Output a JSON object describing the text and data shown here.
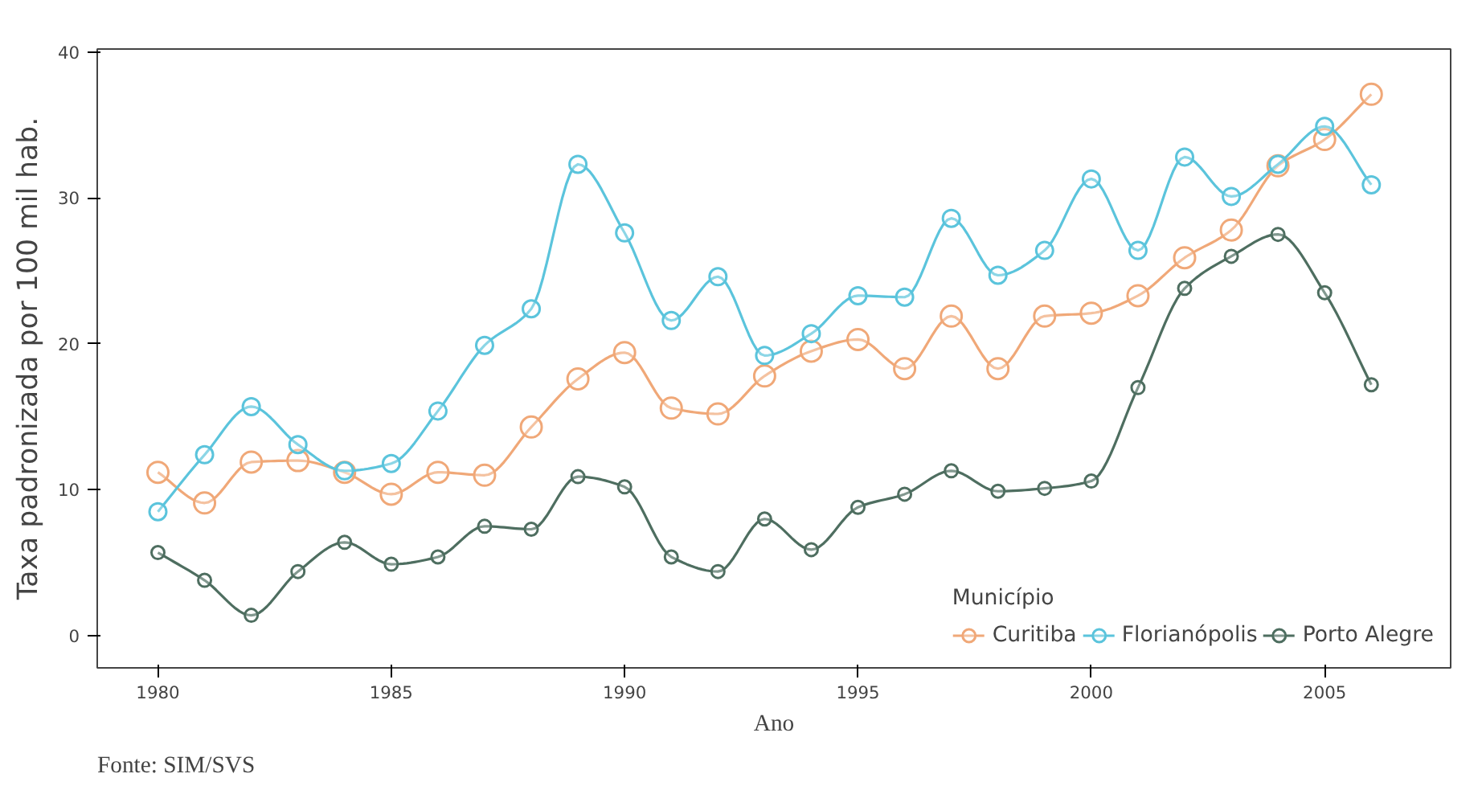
{
  "chart_data": {
    "type": "line",
    "xlabel": "Ano",
    "ylabel": "Taxa padronizada por 100 mil hab.",
    "legend_title": "Município",
    "annotations": [
      "Fonte: SIM/SVS"
    ],
    "x": [
      1980,
      1981,
      1982,
      1983,
      1984,
      1985,
      1986,
      1987,
      1988,
      1989,
      1990,
      1991,
      1992,
      1993,
      1994,
      1995,
      1996,
      1997,
      1998,
      1999,
      2000,
      2001,
      2002,
      2003,
      2004,
      2005,
      2006
    ],
    "series": [
      {
        "name": "Curitiba",
        "color": "#f0a878",
        "values": [
          11.2,
          9.1,
          11.9,
          12.0,
          11.2,
          9.7,
          11.2,
          11.0,
          14.3,
          17.6,
          19.4,
          15.6,
          15.2,
          17.8,
          19.5,
          20.3,
          18.3,
          21.9,
          18.3,
          21.9,
          22.1,
          23.3,
          25.9,
          27.8,
          32.2,
          34.0,
          37.1
        ]
      },
      {
        "name": "Florianópolis",
        "color": "#5bc4dc",
        "values": [
          8.5,
          12.4,
          15.7,
          13.1,
          11.3,
          11.8,
          15.4,
          19.9,
          22.4,
          32.3,
          27.6,
          21.6,
          24.6,
          19.2,
          20.7,
          23.3,
          23.2,
          28.6,
          24.7,
          26.4,
          31.3,
          26.4,
          32.8,
          30.1,
          32.3,
          34.9,
          30.9
        ]
      },
      {
        "name": "Porto Alegre",
        "color": "#4e6e60",
        "values": [
          5.7,
          3.8,
          1.4,
          4.4,
          6.4,
          4.9,
          5.4,
          7.5,
          7.3,
          10.9,
          10.2,
          5.4,
          4.4,
          8.0,
          5.9,
          8.8,
          9.7,
          11.3,
          9.9,
          10.1,
          10.6,
          17.0,
          23.8,
          26.0,
          27.5,
          23.5,
          17.2
        ]
      }
    ],
    "xlim": [
      1978.7,
      2007.7
    ],
    "ylim": [
      -2.2,
      40.2
    ],
    "xticks": [
      1980,
      1985,
      1990,
      1995,
      2000,
      2005
    ],
    "yticks": [
      0,
      10,
      20,
      30,
      40
    ],
    "grid": false,
    "legend": "bottom right",
    "marker": "circle",
    "line_style": "solid"
  }
}
